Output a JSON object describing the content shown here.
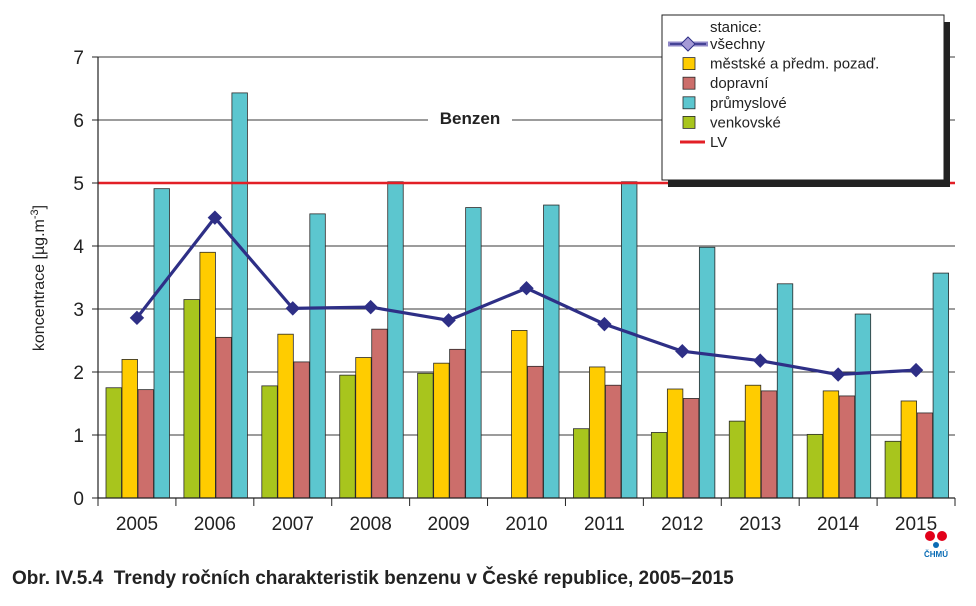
{
  "chart_data": {
    "type": "bar",
    "title": "Benzen",
    "ylabel": "koncentrace [µg.m",
    "ylabel_sup": "-3",
    "ylabel_tail": "]",
    "xlabel": "",
    "ylim": [
      0,
      7
    ],
    "yticks": [
      "0",
      "1",
      "2",
      "3",
      "4",
      "5",
      "6",
      "7"
    ],
    "grid": true,
    "legend_position": "top-right",
    "legend_title": "stanice:",
    "categories": [
      "2005",
      "2006",
      "2007",
      "2008",
      "2009",
      "2010",
      "2011",
      "2012",
      "2013",
      "2014",
      "2015"
    ],
    "series": [
      {
        "name": "venkovské",
        "type": "bar",
        "color": "#a8c51d",
        "values": [
          1.75,
          3.15,
          1.78,
          1.95,
          1.98,
          null,
          1.1,
          1.04,
          1.22,
          1.01,
          0.9
        ]
      },
      {
        "name": "městské a předm. pozaď.",
        "type": "bar",
        "color": "#ffcc00",
        "values": [
          2.2,
          3.9,
          2.6,
          2.23,
          2.14,
          2.66,
          2.08,
          1.73,
          1.79,
          1.7,
          1.54
        ]
      },
      {
        "name": "dopravní",
        "type": "bar",
        "color": "#cc6e6b",
        "values": [
          1.72,
          2.55,
          2.16,
          2.68,
          2.36,
          2.09,
          1.79,
          1.58,
          1.7,
          1.62,
          1.35
        ]
      },
      {
        "name": "průmyslové",
        "type": "bar",
        "color": "#5cc6cf",
        "values": [
          4.91,
          6.43,
          4.51,
          5.02,
          4.61,
          4.65,
          5.02,
          3.98,
          3.4,
          2.92,
          3.57
        ]
      },
      {
        "name": "všechny",
        "type": "line",
        "color": "#2e2f86",
        "values": [
          2.86,
          4.45,
          3.01,
          3.03,
          2.82,
          3.33,
          2.76,
          2.33,
          2.18,
          1.96,
          2.03
        ]
      }
    ],
    "limit_line": {
      "name": "LV",
      "value": 5,
      "color": "#e21f26"
    },
    "legend_order": [
      "všechny",
      "městské a předm. pozaď.",
      "dopravní",
      "průmyslové",
      "venkovské",
      "LV"
    ]
  },
  "logo": {
    "text": "ČHMÚ",
    "color_red": "#e2001a",
    "color_blue": "#0a6cb5"
  },
  "caption": {
    "label": "Obr. IV.5.4",
    "text": "Trendy ročních charakteristik benzenu v České republice, 2005–2015"
  }
}
